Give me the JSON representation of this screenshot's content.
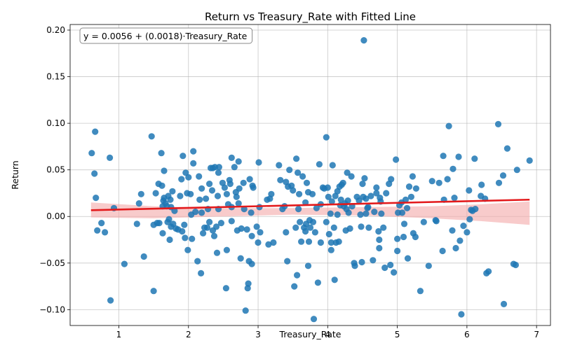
{
  "chart_data": {
    "type": "scatter",
    "title": "Return vs Treasury_Rate with Fitted Line",
    "xlabel": "Treasury_Rate",
    "ylabel": "Return",
    "xlim": [
      0.3,
      7.2
    ],
    "ylim": [
      -0.117,
      0.206
    ],
    "xticks": [
      1,
      2,
      3,
      4,
      5,
      6,
      7
    ],
    "yticks": [
      -0.1,
      -0.05,
      0.0,
      0.05,
      0.1,
      0.15,
      0.2
    ],
    "ytick_labels": [
      "−0.10",
      "−0.05",
      "0.00",
      "0.05",
      "0.10",
      "0.15",
      "0.20"
    ],
    "grid": true,
    "annotation": "y = 0.0056 + (0.0018)·Treasury_Rate",
    "colors": {
      "points": "#1f77b4",
      "fit": "#e31a1c",
      "band": "#f4a8a8"
    },
    "fit": {
      "intercept": 0.0056,
      "slope": 0.0018,
      "x_range": [
        0.6,
        6.9
      ]
    },
    "band": {
      "x": [
        0.6,
        1.5,
        2.5,
        3.5,
        4.5,
        5.5,
        6.2,
        6.9
      ],
      "upper": [
        0.015,
        0.011,
        0.009,
        0.009,
        0.01,
        0.011,
        0.013,
        0.016
      ],
      "lower": [
        -0.001,
        -0.002,
        0.0,
        0.002,
        0.001,
        -0.002,
        -0.005,
        -0.009
      ]
    },
    "points": [
      [
        0.61,
        0.068
      ],
      [
        0.65,
        0.046
      ],
      [
        0.66,
        0.091
      ],
      [
        0.67,
        0.02
      ],
      [
        0.69,
        -0.015
      ],
      [
        0.75,
        -0.007
      ],
      [
        0.8,
        -0.017
      ],
      [
        0.87,
        0.063
      ],
      [
        0.88,
        -0.09
      ],
      [
        0.93,
        0.009
      ],
      [
        1.08,
        -0.051
      ],
      [
        1.26,
        -0.008
      ],
      [
        1.29,
        0.014
      ],
      [
        1.32,
        0.024
      ],
      [
        1.36,
        -0.043
      ],
      [
        1.47,
        0.086
      ],
      [
        1.5,
        -0.08
      ],
      [
        1.5,
        -0.009
      ],
      [
        1.53,
        0.025
      ],
      [
        1.55,
        -0.007
      ],
      [
        1.57,
        0.035
      ],
      [
        1.58,
        -0.007
      ],
      [
        1.61,
        0.068
      ],
      [
        1.62,
        0.033
      ],
      [
        1.63,
        -0.018
      ],
      [
        1.63,
        0.011
      ],
      [
        1.64,
        0.017
      ],
      [
        1.65,
        0.049
      ],
      [
        1.65,
        0.02
      ],
      [
        1.67,
        0.014
      ],
      [
        1.69,
        0.011
      ],
      [
        1.7,
        -0.006
      ],
      [
        1.71,
        0.022
      ],
      [
        1.72,
        -0.003
      ],
      [
        1.73,
        -0.025
      ],
      [
        1.74,
        0.018
      ],
      [
        1.75,
        -0.011
      ],
      [
        1.75,
        0.01
      ],
      [
        1.77,
        0.027
      ],
      [
        1.78,
        -0.008
      ],
      [
        1.8,
        0.006
      ],
      [
        1.82,
        -0.013
      ],
      [
        1.85,
        -0.014
      ],
      [
        1.88,
        0.022
      ],
      [
        1.9,
        0.04
      ],
      [
        1.91,
        -0.016
      ],
      [
        1.92,
        0.065
      ],
      [
        1.94,
        -0.009
      ],
      [
        1.95,
        -0.023
      ],
      [
        1.96,
        0.047
      ],
      [
        1.98,
        0.025
      ],
      [
        1.99,
        -0.036
      ],
      [
        2.0,
        0.042
      ],
      [
        2.03,
        0.024
      ],
      [
        2.04,
        0.002
      ],
      [
        2.05,
        -0.024
      ],
      [
        2.07,
        0.057
      ],
      [
        2.07,
        0.07
      ],
      [
        2.1,
        0.005
      ],
      [
        2.13,
        -0.048
      ],
      [
        2.15,
        0.043
      ],
      [
        2.16,
        0.018
      ],
      [
        2.18,
        -0.061
      ],
      [
        2.19,
        0.03
      ],
      [
        2.19,
        0.004
      ],
      [
        2.21,
        -0.018
      ],
      [
        2.23,
        -0.012
      ],
      [
        2.25,
        0.019
      ],
      [
        2.27,
        -0.012
      ],
      [
        2.28,
        0.008
      ],
      [
        2.3,
        -0.006
      ],
      [
        2.3,
        0.035
      ],
      [
        2.32,
        0.052
      ],
      [
        2.34,
        0.028
      ],
      [
        2.35,
        0.052
      ],
      [
        2.35,
        -0.015
      ],
      [
        2.37,
        -0.021
      ],
      [
        2.38,
        0.053
      ],
      [
        2.4,
        -0.011
      ],
      [
        2.41,
        -0.039
      ],
      [
        2.42,
        0.022
      ],
      [
        2.43,
        0.047
      ],
      [
        2.43,
        0.008
      ],
      [
        2.44,
        0.053
      ],
      [
        2.47,
        -0.007
      ],
      [
        2.49,
        0.036
      ],
      [
        2.52,
        0.031
      ],
      [
        2.54,
        -0.077
      ],
      [
        2.55,
        -0.036
      ],
      [
        2.55,
        0.024
      ],
      [
        2.57,
        0.013
      ],
      [
        2.59,
        0.039
      ],
      [
        2.6,
        0.035
      ],
      [
        2.62,
        0.01
      ],
      [
        2.62,
        -0.005
      ],
      [
        2.62,
        0.063
      ],
      [
        2.66,
        0.053
      ],
      [
        2.68,
        0.026
      ],
      [
        2.69,
        0.021
      ],
      [
        2.7,
        -0.015
      ],
      [
        2.72,
        0.059
      ],
      [
        2.72,
        0.014
      ],
      [
        2.73,
        0.03
      ],
      [
        2.75,
        -0.045
      ],
      [
        2.76,
        -0.013
      ],
      [
        2.79,
        0.036
      ],
      [
        2.8,
        0.008
      ],
      [
        2.82,
        -0.101
      ],
      [
        2.84,
        -0.014
      ],
      [
        2.85,
        -0.077
      ],
      [
        2.86,
        -0.072
      ],
      [
        2.87,
        -0.048
      ],
      [
        2.88,
        0.04
      ],
      [
        2.9,
        0.004
      ],
      [
        2.91,
        -0.051
      ],
      [
        2.91,
        -0.021
      ],
      [
        2.92,
        0.033
      ],
      [
        2.93,
        0.031
      ],
      [
        2.98,
        -0.011
      ],
      [
        3.0,
        -0.028
      ],
      [
        3.01,
        0.058
      ],
      [
        3.02,
        0.01
      ],
      [
        3.03,
        -0.017
      ],
      [
        3.13,
        0.018
      ],
      [
        3.15,
        -0.03
      ],
      [
        3.17,
        0.019
      ],
      [
        3.19,
        0.024
      ],
      [
        3.22,
        -0.028
      ],
      [
        3.3,
        0.055
      ],
      [
        3.32,
        0.039
      ],
      [
        3.35,
        0.008
      ],
      [
        3.38,
        0.011
      ],
      [
        3.4,
        0.037
      ],
      [
        3.4,
        -0.017
      ],
      [
        3.42,
        -0.048
      ],
      [
        3.43,
        0.032
      ],
      [
        3.45,
        0.05
      ],
      [
        3.48,
        0.033
      ],
      [
        3.5,
        0.028
      ],
      [
        3.52,
        -0.075
      ],
      [
        3.54,
        -0.012
      ],
      [
        3.55,
        0.062
      ],
      [
        3.56,
        -0.063
      ],
      [
        3.57,
        0.047
      ],
      [
        3.58,
        0.008
      ],
      [
        3.59,
        0.024
      ],
      [
        3.6,
        -0.006
      ],
      [
        3.62,
        -0.027
      ],
      [
        3.64,
        0.043
      ],
      [
        3.66,
        -0.012
      ],
      [
        3.68,
        -0.016
      ],
      [
        3.68,
        0.015
      ],
      [
        3.69,
        -0.008
      ],
      [
        3.7,
        0.036
      ],
      [
        3.72,
        -0.053
      ],
      [
        3.72,
        0.026
      ],
      [
        3.73,
        -0.027
      ],
      [
        3.74,
        -0.004
      ],
      [
        3.75,
        -0.012
      ],
      [
        3.78,
        0.024
      ],
      [
        3.79,
        -0.006
      ],
      [
        3.8,
        -0.11
      ],
      [
        3.82,
        -0.017
      ],
      [
        3.84,
        0.009
      ],
      [
        3.86,
        -0.071
      ],
      [
        3.88,
        0.056
      ],
      [
        3.9,
        0.013
      ],
      [
        3.9,
        -0.028
      ],
      [
        3.93,
        0.031
      ],
      [
        3.95,
        0.03
      ],
      [
        3.98,
        0.085
      ],
      [
        3.98,
        -0.006
      ],
      [
        4.0,
        0.031
      ],
      [
        4.01,
        0.021
      ],
      [
        4.02,
        -0.019
      ],
      [
        4.04,
        0.003
      ],
      [
        4.05,
        -0.028
      ],
      [
        4.05,
        -0.036
      ],
      [
        4.06,
        0.016
      ],
      [
        4.07,
        0.055
      ],
      [
        4.09,
        -0.012
      ],
      [
        4.1,
        -0.068
      ],
      [
        4.11,
        0.022
      ],
      [
        4.12,
        -0.028
      ],
      [
        4.14,
        0.002
      ],
      [
        4.14,
        0.027
      ],
      [
        4.16,
        -0.027
      ],
      [
        4.17,
        0.032
      ],
      [
        4.18,
        0.012
      ],
      [
        4.19,
        0.018
      ],
      [
        4.2,
        0.034
      ],
      [
        4.22,
        0.036
      ],
      [
        4.23,
        0.011
      ],
      [
        4.25,
        0.014
      ],
      [
        4.26,
        -0.015
      ],
      [
        4.27,
        0.008
      ],
      [
        4.28,
        0.047
      ],
      [
        4.29,
        0.017
      ],
      [
        4.3,
        0.004
      ],
      [
        4.32,
        -0.013
      ],
      [
        4.34,
        0.043
      ],
      [
        4.35,
        0.011
      ],
      [
        4.38,
        -0.05
      ],
      [
        4.39,
        -0.053
      ],
      [
        4.42,
        0.021
      ],
      [
        4.45,
        0.017
      ],
      [
        4.47,
        0.002
      ],
      [
        4.48,
        -0.011
      ],
      [
        4.49,
        -0.049
      ],
      [
        4.5,
        0.035
      ],
      [
        4.51,
        0.021
      ],
      [
        4.52,
        0.189
      ],
      [
        4.53,
        0.041
      ],
      [
        4.55,
        0.019
      ],
      [
        4.55,
        0.003
      ],
      [
        4.57,
        0.009
      ],
      [
        4.58,
        0.01
      ],
      [
        4.59,
        -0.012
      ],
      [
        4.62,
        0.022
      ],
      [
        4.65,
        -0.047
      ],
      [
        4.67,
        0.005
      ],
      [
        4.7,
        0.025
      ],
      [
        4.7,
        0.031
      ],
      [
        4.73,
        -0.016
      ],
      [
        4.74,
        -0.025
      ],
      [
        4.74,
        -0.034
      ],
      [
        4.75,
        0.02
      ],
      [
        4.76,
        0.016
      ],
      [
        4.77,
        0.003
      ],
      [
        4.8,
        -0.012
      ],
      [
        4.82,
        -0.055
      ],
      [
        4.84,
        0.025
      ],
      [
        4.88,
        0.035
      ],
      [
        4.9,
        -0.052
      ],
      [
        4.91,
        0.04
      ],
      [
        4.95,
        -0.06
      ],
      [
        4.98,
        0.061
      ],
      [
        5.0,
        -0.024
      ],
      [
        5.0,
        -0.037
      ],
      [
        5.01,
        0.004
      ],
      [
        5.03,
        0.012
      ],
      [
        5.06,
        0.015
      ],
      [
        5.07,
        0.004
      ],
      [
        5.09,
        -0.022
      ],
      [
        5.1,
        -0.008
      ],
      [
        5.12,
        0.018
      ],
      [
        5.14,
        0.009
      ],
      [
        5.15,
        -0.045
      ],
      [
        5.17,
        0.032
      ],
      [
        5.2,
        0.021
      ],
      [
        5.22,
        0.043
      ],
      [
        5.23,
        -0.018
      ],
      [
        5.26,
        -0.022
      ],
      [
        5.27,
        0.03
      ],
      [
        5.33,
        -0.08
      ],
      [
        5.38,
        -0.006
      ],
      [
        5.45,
        -0.053
      ],
      [
        5.5,
        0.038
      ],
      [
        5.55,
        -0.004
      ],
      [
        5.56,
        -0.005
      ],
      [
        5.6,
        0.036
      ],
      [
        5.65,
        -0.037
      ],
      [
        5.66,
        0.065
      ],
      [
        5.67,
        0.018
      ],
      [
        5.72,
        0.04
      ],
      [
        5.74,
        0.097
      ],
      [
        5.79,
        -0.015
      ],
      [
        5.8,
        0.051
      ],
      [
        5.82,
        0.02
      ],
      [
        5.84,
        -0.034
      ],
      [
        5.88,
        0.064
      ],
      [
        5.9,
        -0.026
      ],
      [
        5.92,
        -0.105
      ],
      [
        5.95,
        -0.01
      ],
      [
        6.0,
        -0.017
      ],
      [
        6.03,
        0.028
      ],
      [
        6.04,
        -0.003
      ],
      [
        6.06,
        0.007
      ],
      [
        6.08,
        0.006
      ],
      [
        6.11,
        0.062
      ],
      [
        6.12,
        0.008
      ],
      [
        6.2,
        0.022
      ],
      [
        6.21,
        0.034
      ],
      [
        6.26,
        0.019
      ],
      [
        6.28,
        -0.061
      ],
      [
        6.31,
        -0.059
      ],
      [
        6.45,
        0.099
      ],
      [
        6.46,
        0.036
      ],
      [
        6.52,
        0.044
      ],
      [
        6.53,
        -0.094
      ],
      [
        6.58,
        0.073
      ],
      [
        6.67,
        -0.051
      ],
      [
        6.7,
        -0.052
      ],
      [
        6.72,
        0.05
      ],
      [
        6.9,
        0.06
      ]
    ]
  }
}
